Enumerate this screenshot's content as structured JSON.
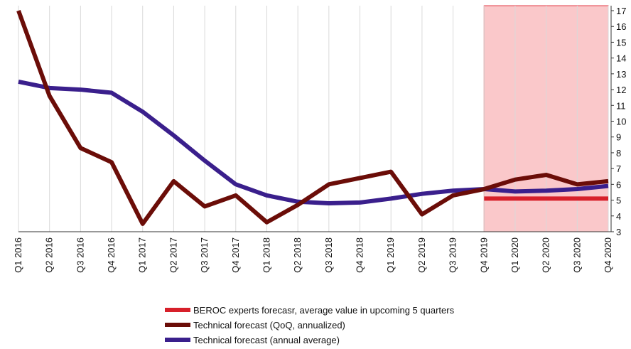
{
  "chart_data": {
    "type": "line",
    "categories": [
      "Q1 2016",
      "Q2 2016",
      "Q3 2016",
      "Q4 2016",
      "Q1 2017",
      "Q2 2017",
      "Q3 2017",
      "Q4 2017",
      "Q1 2018",
      "Q2 2018",
      "Q3 2018",
      "Q4 2018",
      "Q1 2019",
      "Q2 2019",
      "Q3 2019",
      "Q4 2019",
      "Q1 2020",
      "Q2 2020",
      "Q3 2020",
      "Q4 2020"
    ],
    "series": [
      {
        "name": "BEROC experts forecasr, average value in upcoming 5 quarters",
        "color": "#d7202a",
        "values": [
          null,
          null,
          null,
          null,
          null,
          null,
          null,
          null,
          null,
          null,
          null,
          null,
          null,
          null,
          null,
          5.1,
          5.1,
          5.1,
          5.1,
          5.1
        ]
      },
      {
        "name": "Technical forecast  (QoQ, annualized)",
        "color": "#6b0d08",
        "values": [
          17.0,
          11.6,
          8.3,
          7.4,
          3.5,
          6.2,
          4.6,
          5.3,
          3.6,
          4.7,
          6.0,
          6.4,
          6.8,
          4.1,
          5.3,
          5.7,
          6.3,
          6.6,
          6.0,
          6.2
        ]
      },
      {
        "name": "Technical forecast (annual average)",
        "color": "#3a1f8c",
        "values": [
          12.5,
          12.1,
          12.0,
          11.8,
          10.6,
          9.1,
          7.5,
          6.0,
          5.3,
          4.9,
          4.8,
          4.85,
          5.1,
          5.4,
          5.6,
          5.7,
          5.55,
          5.6,
          5.7,
          5.9
        ]
      }
    ],
    "ylim": [
      3,
      17
    ],
    "yticks": [
      3,
      4,
      5,
      6,
      7,
      8,
      9,
      10,
      11,
      12,
      13,
      14,
      15,
      16,
      17
    ],
    "highlight": {
      "from": "Q4 2019",
      "to": "Q4 2020",
      "color": "#fac8ca"
    },
    "grid": true
  }
}
